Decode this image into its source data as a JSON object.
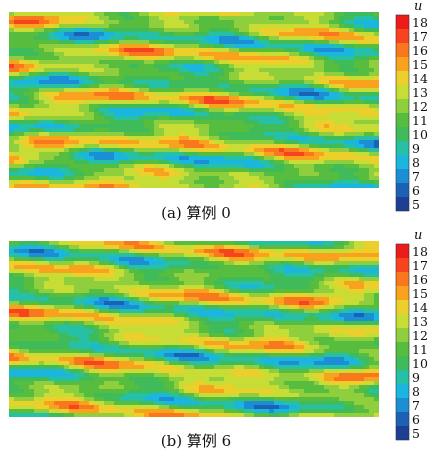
{
  "chart_data": [
    {
      "type": "heatmap",
      "caption": "(a) 算例 0",
      "colorbar": {
        "label": "u",
        "range": [
          5,
          18
        ],
        "ticks": [
          "18",
          "17",
          "16",
          "15",
          "14",
          "13",
          "12",
          "11",
          "10",
          "9",
          "8",
          "7",
          "6",
          "5"
        ],
        "colors": [
          "#ee1b1b",
          "#f7431e",
          "#f9781e",
          "#f8a21e",
          "#eccf2b",
          "#c7dc35",
          "#8fce3c",
          "#56bd3f",
          "#3fbb5a",
          "#25c0a6",
          "#1bb6dd",
          "#1b8ed6",
          "#1b61b4",
          "#1c3f93"
        ]
      }
    },
    {
      "type": "heatmap",
      "caption": "(b) 算例 6",
      "colorbar": {
        "label": "u",
        "range": [
          5,
          18
        ],
        "ticks": [
          "18",
          "17",
          "16",
          "15",
          "14",
          "13",
          "12",
          "11",
          "10",
          "9",
          "8",
          "7",
          "6",
          "5"
        ],
        "colors": [
          "#ee1b1b",
          "#f7431e",
          "#f9781e",
          "#f8a21e",
          "#eccf2b",
          "#c7dc35",
          "#8fce3c",
          "#56bd3f",
          "#3fbb5a",
          "#25c0a6",
          "#1bb6dd",
          "#1b8ed6",
          "#1b61b4",
          "#1c3f93"
        ]
      }
    }
  ]
}
